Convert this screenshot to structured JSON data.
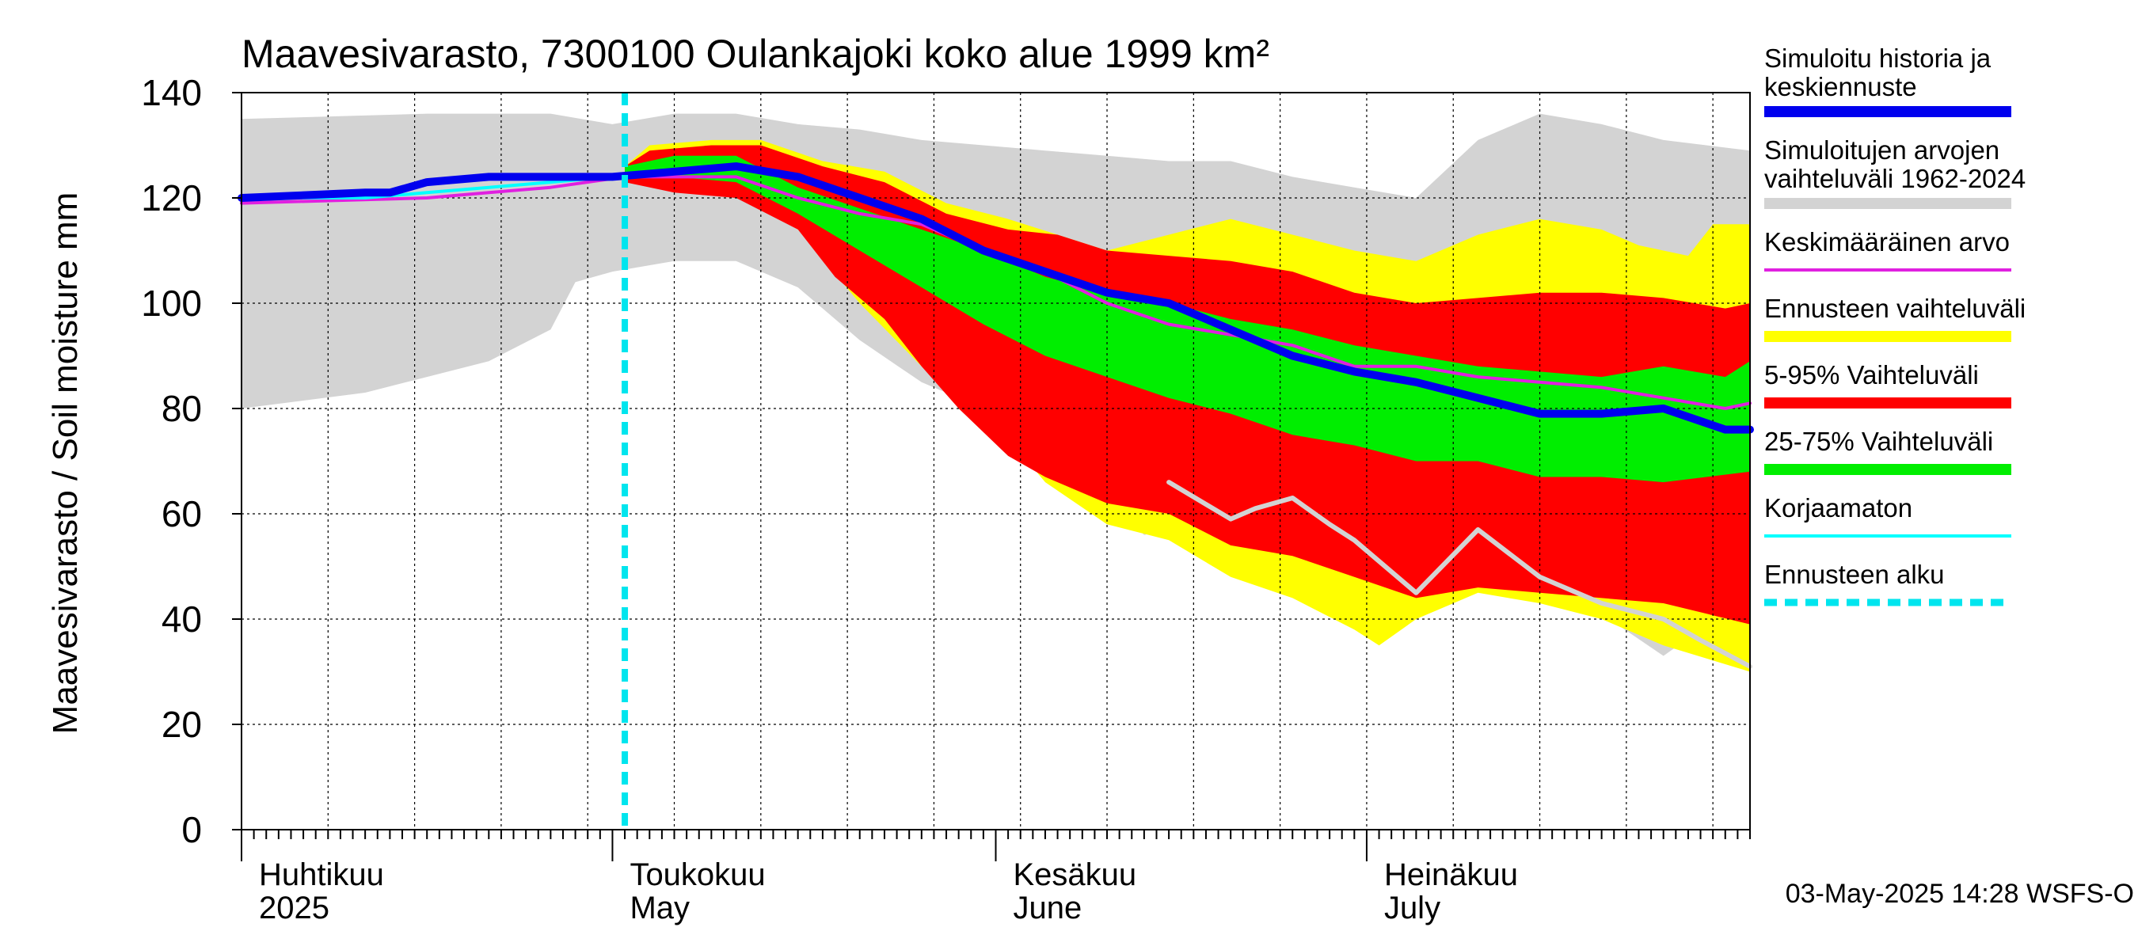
{
  "chart_data": {
    "type": "area",
    "title": "Maavesivarasto, 7300100 Oulankajoki koko alue 1999 km²",
    "ylabel": "Maavesivarasto / Soil moisture   mm",
    "ylim": [
      0,
      140
    ],
    "yticks": [
      0,
      20,
      40,
      60,
      80,
      100,
      120,
      140
    ],
    "x_range_days": [
      0,
      122
    ],
    "forecast_start_day": 31,
    "month_labels": [
      {
        "day": 0,
        "fi": "Huhtikuu",
        "en": "2025"
      },
      {
        "day": 30,
        "fi": "Toukokuu",
        "en": "May"
      },
      {
        "day": 61,
        "fi": "Kesäkuu",
        "en": "June"
      },
      {
        "day": 91,
        "fi": "Heinäkuu",
        "en": "July"
      }
    ],
    "timestamp": "03-May-2025 14:28 WSFS-O",
    "legend": [
      {
        "key": "sim",
        "label1": "Simuloitu historia ja",
        "label2": "keskiennuste",
        "color": "#0000ee",
        "style": "thick"
      },
      {
        "key": "hist",
        "label1": "Simuloitujen arvojen",
        "label2": "vaihteluväli 1962-2024",
        "color": "#d3d3d3",
        "style": "thick"
      },
      {
        "key": "mean",
        "label1": "Keskimääräinen arvo",
        "label2": "",
        "color": "#e020e0",
        "style": "thin"
      },
      {
        "key": "range",
        "label1": "Ennusteen vaihteluväli",
        "label2": "",
        "color": "#ffff00",
        "style": "thick"
      },
      {
        "key": "p5_95",
        "label1": "5-95% Vaihteluväli",
        "label2": "",
        "color": "#ff0000",
        "style": "thick"
      },
      {
        "key": "p25_75",
        "label1": "25-75% Vaihteluväli",
        "label2": "",
        "color": "#00ee00",
        "style": "thick"
      },
      {
        "key": "raw",
        "label1": "Korjaamaton",
        "label2": "",
        "color": "#00ffff",
        "style": "thin"
      },
      {
        "key": "fstart",
        "label1": "Ennusteen alku",
        "label2": "",
        "color": "#00e5ee",
        "style": "dashed"
      }
    ],
    "series": {
      "hist_upper": [
        [
          0,
          135
        ],
        [
          15,
          136
        ],
        [
          25,
          136
        ],
        [
          30,
          134
        ],
        [
          35,
          136
        ],
        [
          40,
          136
        ],
        [
          45,
          134
        ],
        [
          50,
          133
        ],
        [
          55,
          131
        ],
        [
          60,
          130
        ],
        [
          65,
          129
        ],
        [
          70,
          128
        ],
        [
          75,
          127
        ],
        [
          80,
          127
        ],
        [
          85,
          124
        ],
        [
          90,
          122
        ],
        [
          95,
          120
        ],
        [
          100,
          131
        ],
        [
          105,
          136
        ],
        [
          110,
          134
        ],
        [
          115,
          131
        ],
        [
          122,
          129
        ]
      ],
      "hist_lower": [
        [
          0,
          80
        ],
        [
          10,
          83
        ],
        [
          15,
          86
        ],
        [
          20,
          89
        ],
        [
          25,
          95
        ],
        [
          27,
          104
        ],
        [
          30,
          106
        ],
        [
          35,
          108
        ],
        [
          40,
          108
        ],
        [
          45,
          103
        ],
        [
          50,
          93
        ],
        [
          55,
          85
        ],
        [
          60,
          80
        ],
        [
          62,
          74
        ],
        [
          65,
          72
        ],
        [
          70,
          63
        ],
        [
          73,
          56
        ],
        [
          75,
          57
        ],
        [
          80,
          55
        ],
        [
          85,
          50
        ],
        [
          90,
          46
        ],
        [
          95,
          45
        ],
        [
          100,
          47
        ],
        [
          105,
          44
        ],
        [
          110,
          41
        ],
        [
          115,
          33
        ],
        [
          118,
          38
        ],
        [
          122,
          31
        ]
      ],
      "range_upper": [
        [
          31,
          126
        ],
        [
          33,
          130
        ],
        [
          38,
          131
        ],
        [
          42,
          131
        ],
        [
          47,
          127
        ],
        [
          52,
          125
        ],
        [
          57,
          119
        ],
        [
          62,
          116
        ],
        [
          66,
          113
        ],
        [
          70,
          110
        ],
        [
          75,
          113
        ],
        [
          80,
          116
        ],
        [
          85,
          113
        ],
        [
          90,
          110
        ],
        [
          95,
          108
        ],
        [
          100,
          113
        ],
        [
          105,
          116
        ],
        [
          110,
          114
        ],
        [
          113,
          111
        ],
        [
          117,
          109
        ],
        [
          119,
          115
        ],
        [
          122,
          115
        ]
      ],
      "range_lower": [
        [
          31,
          124
        ],
        [
          35,
          122
        ],
        [
          40,
          121
        ],
        [
          45,
          114
        ],
        [
          50,
          100
        ],
        [
          55,
          88
        ],
        [
          60,
          80
        ],
        [
          65,
          66
        ],
        [
          70,
          58
        ],
        [
          75,
          55
        ],
        [
          80,
          48
        ],
        [
          85,
          44
        ],
        [
          90,
          38
        ],
        [
          92,
          35
        ],
        [
          95,
          40
        ],
        [
          100,
          45
        ],
        [
          105,
          43
        ],
        [
          110,
          40
        ],
        [
          115,
          35
        ],
        [
          122,
          30
        ]
      ],
      "p95": [
        [
          31,
          126
        ],
        [
          33,
          129
        ],
        [
          38,
          130
        ],
        [
          42,
          130
        ],
        [
          47,
          126
        ],
        [
          52,
          123
        ],
        [
          57,
          117
        ],
        [
          62,
          114
        ],
        [
          66,
          113
        ],
        [
          70,
          110
        ],
        [
          75,
          109
        ],
        [
          80,
          108
        ],
        [
          85,
          106
        ],
        [
          90,
          102
        ],
        [
          95,
          100
        ],
        [
          100,
          101
        ],
        [
          105,
          102
        ],
        [
          110,
          102
        ],
        [
          115,
          101
        ],
        [
          120,
          99
        ],
        [
          122,
          100
        ]
      ],
      "p5": [
        [
          31,
          123
        ],
        [
          35,
          121
        ],
        [
          40,
          120
        ],
        [
          45,
          114
        ],
        [
          48,
          105
        ],
        [
          52,
          97
        ],
        [
          55,
          88
        ],
        [
          58,
          80
        ],
        [
          62,
          71
        ],
        [
          65,
          67
        ],
        [
          70,
          62
        ],
        [
          75,
          60
        ],
        [
          80,
          54
        ],
        [
          85,
          52
        ],
        [
          90,
          48
        ],
        [
          95,
          44
        ],
        [
          100,
          46
        ],
        [
          105,
          45
        ],
        [
          110,
          44
        ],
        [
          115,
          43
        ],
        [
          122,
          39
        ]
      ],
      "p75": [
        [
          31,
          126
        ],
        [
          35,
          128
        ],
        [
          40,
          128
        ],
        [
          45,
          122
        ],
        [
          50,
          118
        ],
        [
          55,
          114
        ],
        [
          60,
          110
        ],
        [
          65,
          105
        ],
        [
          70,
          102
        ],
        [
          75,
          100
        ],
        [
          80,
          97
        ],
        [
          85,
          95
        ],
        [
          90,
          92
        ],
        [
          95,
          90
        ],
        [
          100,
          88
        ],
        [
          105,
          87
        ],
        [
          110,
          86
        ],
        [
          115,
          88
        ],
        [
          120,
          86
        ],
        [
          122,
          89
        ]
      ],
      "p25": [
        [
          31,
          124
        ],
        [
          35,
          124
        ],
        [
          40,
          123
        ],
        [
          45,
          117
        ],
        [
          50,
          110
        ],
        [
          55,
          103
        ],
        [
          60,
          96
        ],
        [
          65,
          90
        ],
        [
          70,
          86
        ],
        [
          75,
          82
        ],
        [
          80,
          79
        ],
        [
          85,
          75
        ],
        [
          90,
          73
        ],
        [
          95,
          70
        ],
        [
          100,
          70
        ],
        [
          105,
          67
        ],
        [
          110,
          67
        ],
        [
          115,
          66
        ],
        [
          122,
          68
        ]
      ],
      "mean": [
        [
          0,
          119
        ],
        [
          15,
          120
        ],
        [
          20,
          121
        ],
        [
          25,
          122
        ],
        [
          31,
          124
        ],
        [
          35,
          124
        ],
        [
          40,
          124
        ],
        [
          45,
          120
        ],
        [
          50,
          117
        ],
        [
          55,
          115
        ],
        [
          60,
          110
        ],
        [
          65,
          106
        ],
        [
          70,
          100
        ],
        [
          75,
          96
        ],
        [
          80,
          94
        ],
        [
          85,
          92
        ],
        [
          90,
          88
        ],
        [
          95,
          88
        ],
        [
          100,
          86
        ],
        [
          105,
          85
        ],
        [
          110,
          84
        ],
        [
          115,
          82
        ],
        [
          120,
          80
        ],
        [
          122,
          81
        ]
      ],
      "raw": [
        [
          0,
          120
        ],
        [
          10,
          120
        ],
        [
          15,
          121
        ],
        [
          20,
          122
        ],
        [
          25,
          123
        ],
        [
          30,
          124
        ],
        [
          31,
          124
        ]
      ],
      "raw_lower": [
        [
          75,
          66
        ],
        [
          80,
          59
        ],
        [
          82,
          61
        ],
        [
          85,
          63
        ],
        [
          88,
          58
        ],
        [
          90,
          55
        ],
        [
          95,
          45
        ],
        [
          100,
          57
        ],
        [
          105,
          48
        ],
        [
          110,
          43
        ],
        [
          115,
          40
        ],
        [
          118,
          36
        ],
        [
          122,
          31
        ]
      ],
      "sim": [
        [
          0,
          120
        ],
        [
          10,
          121
        ],
        [
          12,
          121
        ],
        [
          15,
          123
        ],
        [
          20,
          124
        ],
        [
          25,
          124
        ],
        [
          30,
          124
        ],
        [
          35,
          125
        ],
        [
          40,
          126
        ],
        [
          45,
          124
        ],
        [
          50,
          120
        ],
        [
          55,
          116
        ],
        [
          60,
          110
        ],
        [
          65,
          106
        ],
        [
          70,
          102
        ],
        [
          75,
          100
        ],
        [
          80,
          95
        ],
        [
          85,
          90
        ],
        [
          90,
          87
        ],
        [
          95,
          85
        ],
        [
          100,
          82
        ],
        [
          105,
          79
        ],
        [
          110,
          79
        ],
        [
          115,
          80
        ],
        [
          120,
          76
        ],
        [
          122,
          76
        ]
      ]
    }
  }
}
